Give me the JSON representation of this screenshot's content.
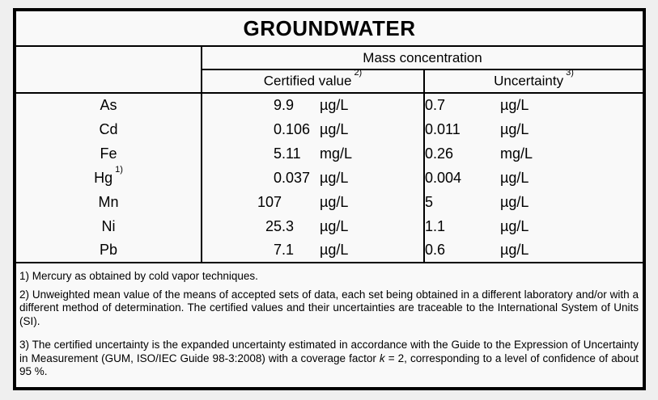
{
  "title": "GROUNDWATER",
  "table": {
    "group_header": "Mass concentration",
    "columns": [
      {
        "label": "Certified value",
        "note": "2)"
      },
      {
        "label": "Uncertainty",
        "note": "3)"
      }
    ],
    "rows": [
      {
        "element": "As",
        "note": "",
        "certified": {
          "value": "9.9",
          "unit": "µg/L"
        },
        "uncertainty": {
          "value": "0.7",
          "unit": "µg/L"
        }
      },
      {
        "element": "Cd",
        "note": "",
        "certified": {
          "value": "0.106",
          "unit": "µg/L"
        },
        "uncertainty": {
          "value": "0.011",
          "unit": "µg/L"
        }
      },
      {
        "element": "Fe",
        "note": "",
        "certified": {
          "value": "5.11",
          "unit": "mg/L"
        },
        "uncertainty": {
          "value": "0.26",
          "unit": "mg/L"
        }
      },
      {
        "element": "Hg",
        "note": "1)",
        "certified": {
          "value": "0.037",
          "unit": "µg/L"
        },
        "uncertainty": {
          "value": "0.004",
          "unit": "µg/L"
        }
      },
      {
        "element": "Mn",
        "note": "",
        "certified": {
          "value": "107",
          "unit": "µg/L"
        },
        "uncertainty": {
          "value": "5",
          "unit": "µg/L"
        }
      },
      {
        "element": "Ni",
        "note": "",
        "certified": {
          "value": "25.3",
          "unit": "µg/L"
        },
        "uncertainty": {
          "value": "1.1",
          "unit": "µg/L"
        }
      },
      {
        "element": "Pb",
        "note": "",
        "certified": {
          "value": "7.1",
          "unit": "µg/L"
        },
        "uncertainty": {
          "value": "0.6",
          "unit": "µg/L"
        }
      }
    ]
  },
  "footnotes": [
    {
      "justify": false,
      "gap": false,
      "segments": [
        {
          "text": "1) Mercury as obtained by cold vapor techniques.",
          "italic": false
        }
      ]
    },
    {
      "justify": true,
      "gap": false,
      "segments": [
        {
          "text": "2) Unweighted mean value of the means of accepted sets of data, each set being obtained in a different laboratory and/or with a different method of determination. The certified values and their uncertainties are traceable to the International System of Units (SI).",
          "italic": false
        }
      ]
    },
    {
      "justify": true,
      "gap": true,
      "segments": [
        {
          "text": "3) The certified uncertainty is the expanded uncertainty estimated in accordance with the Guide to the Expression of Uncertainty in Measurement (GUM, ISO/IEC Guide 98-3:2008) with a coverage factor ",
          "italic": false
        },
        {
          "text": "k",
          "italic": true
        },
        {
          "text": " = 2, corresponding to a level of confidence of about 95 %.",
          "italic": false
        }
      ]
    }
  ]
}
